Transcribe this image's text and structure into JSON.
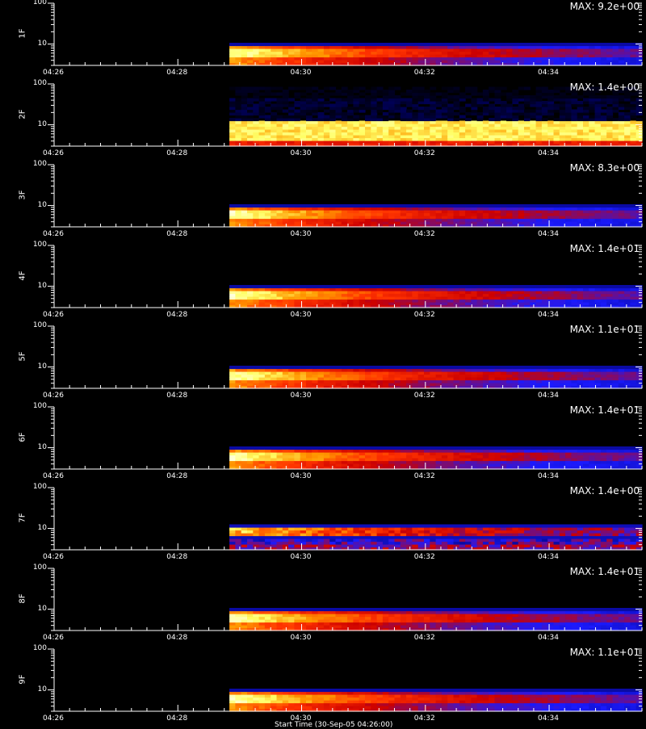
{
  "chart_data": {
    "type": "heatmap",
    "x_tick_labels": [
      "04:26",
      "04:28",
      "04:30",
      "04:32",
      "04:34"
    ],
    "y_tick_labels": [
      "100",
      "10"
    ],
    "y_scale": "log",
    "ylim": [
      3,
      100
    ],
    "xlim": [
      "04:26",
      "04:35:30"
    ],
    "data_start": "04:28:50",
    "colormap": [
      "#000000",
      "#000066",
      "#1a1aff",
      "#cc0000",
      "#ff3300",
      "#ff9900",
      "#ffff66",
      "#ffffe0"
    ],
    "panels": [
      {
        "name": "1F",
        "max_label": "MAX: 9.2e+00",
        "band": "low",
        "peak": 1.0
      },
      {
        "name": "2F",
        "max_label": "MAX: 1.4e+00",
        "band": "wide",
        "peak": 1.0
      },
      {
        "name": "3F",
        "max_label": "MAX: 8.3e+00",
        "band": "low",
        "peak": 1.0
      },
      {
        "name": "4F",
        "max_label": "MAX: 1.4e+01",
        "band": "low",
        "peak": 1.0
      },
      {
        "name": "5F",
        "max_label": "MAX: 1.1e+01",
        "band": "low",
        "peak": 1.0
      },
      {
        "name": "6F",
        "max_label": "MAX: 1.4e+01",
        "band": "low",
        "peak": 1.0
      },
      {
        "name": "7F",
        "max_label": "MAX: 1.4e+00",
        "band": "split",
        "peak": 1.0
      },
      {
        "name": "8F",
        "max_label": "MAX: 1.4e+01",
        "band": "low",
        "peak": 1.0
      },
      {
        "name": "9F",
        "max_label": "MAX: 1.1e+01",
        "band": "low",
        "peak": 1.0
      }
    ],
    "footer_label": "Start Time (30-Sep-05 04:26:00)"
  }
}
